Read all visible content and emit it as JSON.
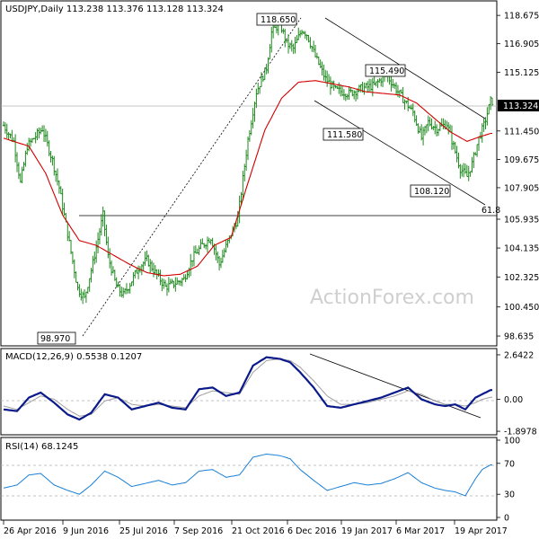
{
  "chart_data": {
    "type": "candlestick",
    "instrument": "USDJPY",
    "timeframe": "Daily",
    "header": "USDJPY,Daily  113.238 113.376 113.128 113.324",
    "ohlc": {
      "open": 113.238,
      "high": 113.376,
      "low": 113.128,
      "close": 113.324
    },
    "current_price_label": "113.324",
    "price_axis": {
      "ticks": [
        "118.675",
        "116.905",
        "115.125",
        "113.324",
        "111.450",
        "109.675",
        "107.905",
        "105.935",
        "104.135",
        "102.325",
        "100.450",
        "98.635"
      ],
      "ylim": [
        98.3,
        119.3
      ]
    },
    "x_axis": {
      "ticks": [
        "26 Apr 2016",
        "9 Jun 2016",
        "25 Jul 2016",
        "7 Sep 2016",
        "21 Oct 2016",
        "6 Dec 2016",
        "19 Jan 2017",
        "6 Mar 2017",
        "19 Apr 2017"
      ]
    },
    "series": [
      {
        "name": "price",
        "x": [
          0,
          6,
          10,
          14,
          18,
          23,
          29,
          33,
          41,
          44,
          48,
          53,
          59,
          62,
          67,
          71,
          75,
          80,
          85,
          90,
          96,
          101,
          107,
          112,
          117,
          123,
          128,
          133,
          139,
          145,
          150,
          156,
          159,
          164,
          168,
          172,
          177,
          180,
          185,
          191,
          197,
          205,
          212,
          220,
          227,
          236,
          243,
          248,
          252,
          257,
          263,
          267,
          271,
          275,
          278,
          282,
          285,
          289
        ],
        "y": [
          111.8,
          110.8,
          108.2,
          110.5,
          111.0,
          111.6,
          109.6,
          107.9,
          103.3,
          101.6,
          101.0,
          103.2,
          106.2,
          103.6,
          101.7,
          101.2,
          101.9,
          102.9,
          103.4,
          102.6,
          101.7,
          101.9,
          102.2,
          103.5,
          104.2,
          104.8,
          103.1,
          104.5,
          106.0,
          110.9,
          113.9,
          115.4,
          117.6,
          118.2,
          116.9,
          116.6,
          117.8,
          117.5,
          116.1,
          114.7,
          114.0,
          113.8,
          114.1,
          114.3,
          115.0,
          113.6,
          112.6,
          111.0,
          112.0,
          111.6,
          111.9,
          110.5,
          109.1,
          108.6,
          109.4,
          111.0,
          111.8,
          113.3
        ]
      }
    ],
    "moving_average": {
      "x": [
        0,
        15,
        25,
        35,
        45,
        55,
        65,
        75,
        85,
        95,
        105,
        115,
        125,
        135,
        145,
        155,
        165,
        175,
        185,
        195,
        205,
        215,
        225,
        235,
        245,
        255,
        265,
        275,
        283,
        289
      ],
      "y": [
        111.0,
        110.5,
        108.8,
        106.2,
        104.6,
        104.3,
        103.7,
        103.1,
        102.6,
        102.4,
        102.5,
        103.0,
        104.3,
        104.8,
        108.2,
        111.5,
        113.5,
        114.5,
        114.6,
        114.4,
        114.2,
        113.9,
        113.8,
        113.7,
        113.2,
        112.3,
        111.4,
        110.8,
        111.1,
        111.3
      ]
    },
    "annotations": {
      "high_label": "118.650",
      "low_label": "98.970",
      "swing_label_1": "115.490",
      "swing_label_2": "111.580",
      "swing_label_3": "108.120",
      "fib_label": "61.8",
      "fib_level": 106.2
    },
    "watermark": "ActionForex.com",
    "macd": {
      "label": "MACD(12,26,9) 0.5538 0.1207",
      "ticks": [
        "2.6422",
        "0.00",
        "-1.8978"
      ],
      "ylim": [
        -2.0,
        2.8
      ],
      "x": [
        0,
        8,
        15,
        22,
        30,
        38,
        45,
        52,
        60,
        68,
        76,
        84,
        92,
        100,
        108,
        116,
        124,
        132,
        140,
        148,
        156,
        164,
        170,
        176,
        184,
        192,
        200,
        208,
        216,
        224,
        232,
        240,
        248,
        256,
        262,
        268,
        274,
        280,
        284,
        289
      ],
      "macd": [
        -0.6,
        -0.7,
        0.1,
        0.4,
        -0.2,
        -0.9,
        -1.2,
        -0.8,
        0.3,
        0.1,
        -0.6,
        -0.4,
        -0.2,
        -0.5,
        -0.6,
        0.6,
        0.7,
        0.2,
        0.4,
        2.0,
        2.5,
        2.4,
        2.2,
        1.6,
        0.7,
        -0.4,
        -0.5,
        -0.3,
        -0.1,
        0.1,
        0.4,
        0.7,
        0.0,
        -0.3,
        -0.4,
        -0.3,
        -0.6,
        0.1,
        0.3,
        0.55
      ],
      "signal": [
        -0.4,
        -0.6,
        -0.2,
        0.2,
        0.0,
        -0.6,
        -1.0,
        -0.9,
        -0.1,
        0.1,
        -0.3,
        -0.4,
        -0.3,
        -0.4,
        -0.5,
        0.2,
        0.5,
        0.4,
        0.3,
        1.6,
        2.3,
        2.4,
        2.3,
        1.9,
        1.1,
        0.2,
        -0.3,
        -0.3,
        -0.2,
        0.0,
        0.2,
        0.5,
        0.3,
        -0.1,
        -0.3,
        -0.3,
        -0.4,
        -0.2,
        0.0,
        0.12
      ]
    },
    "rsi": {
      "label": "RSI(14) 68.1245",
      "ticks": [
        "100",
        "70",
        "30",
        "0"
      ],
      "ylim": [
        0,
        100
      ],
      "levels": [
        70,
        30
      ],
      "x": [
        0,
        8,
        15,
        22,
        30,
        38,
        45,
        52,
        60,
        68,
        76,
        84,
        92,
        100,
        108,
        116,
        124,
        132,
        140,
        148,
        156,
        164,
        170,
        176,
        184,
        192,
        200,
        208,
        216,
        224,
        232,
        240,
        248,
        256,
        262,
        268,
        274,
        280,
        284,
        289
      ],
      "y": [
        38,
        42,
        55,
        57,
        42,
        35,
        30,
        42,
        60,
        52,
        40,
        44,
        48,
        42,
        45,
        60,
        62,
        52,
        55,
        78,
        82,
        80,
        76,
        62,
        48,
        35,
        40,
        45,
        42,
        44,
        50,
        58,
        45,
        38,
        35,
        33,
        28,
        50,
        62,
        68
      ]
    }
  }
}
